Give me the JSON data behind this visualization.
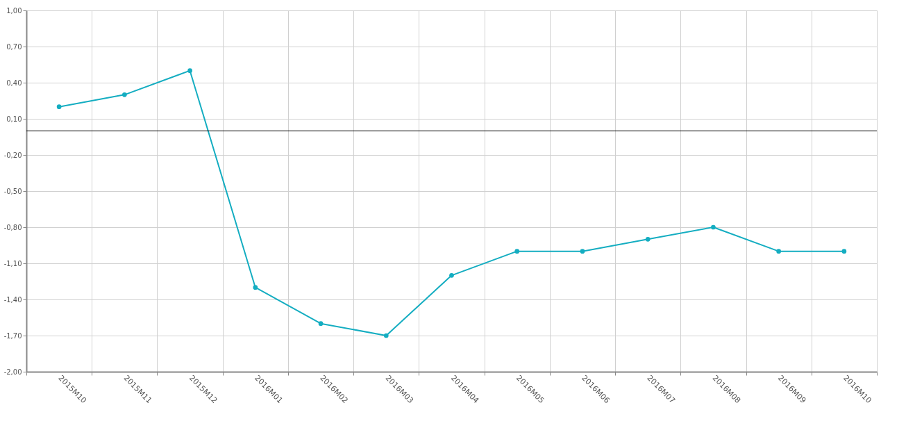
{
  "chart_data": {
    "type": "line",
    "categories": [
      "2015M10",
      "2015M11",
      "2015M12",
      "2016M01",
      "2016M02",
      "2016M03",
      "2016M04",
      "2016M05",
      "2016M06",
      "2016M07",
      "2016M08",
      "2016M09",
      "2016M10"
    ],
    "series": [
      {
        "color": "#14adc1",
        "values": [
          0.2,
          0.3,
          0.5,
          -1.3,
          -1.6,
          -1.7,
          -1.2,
          -1.0,
          -1.0,
          -0.9,
          -0.8,
          -1.0,
          -1.0
        ]
      }
    ],
    "ylim": [
      -2.0,
      1.0
    ],
    "yticks": [
      {
        "value": 1.0,
        "label": "1,00"
      },
      {
        "value": 0.7,
        "label": "0,70"
      },
      {
        "value": 0.4,
        "label": "0,40"
      },
      {
        "value": 0.1,
        "label": "0,10"
      },
      {
        "value": -0.2,
        "label": "-0,20"
      },
      {
        "value": -0.5,
        "label": "-0,50"
      },
      {
        "value": -0.8,
        "label": "-0,80"
      },
      {
        "value": -1.1,
        "label": "-1,10"
      },
      {
        "value": -1.4,
        "label": "-1,40"
      },
      {
        "value": -1.7,
        "label": "-1,70"
      },
      {
        "value": -2.0,
        "label": "-2,00"
      }
    ],
    "ref_lines": [
      {
        "axis": "y",
        "value": 0,
        "color": "#000000"
      }
    ],
    "grid": true,
    "marker": "circle",
    "line_style": "solid"
  }
}
